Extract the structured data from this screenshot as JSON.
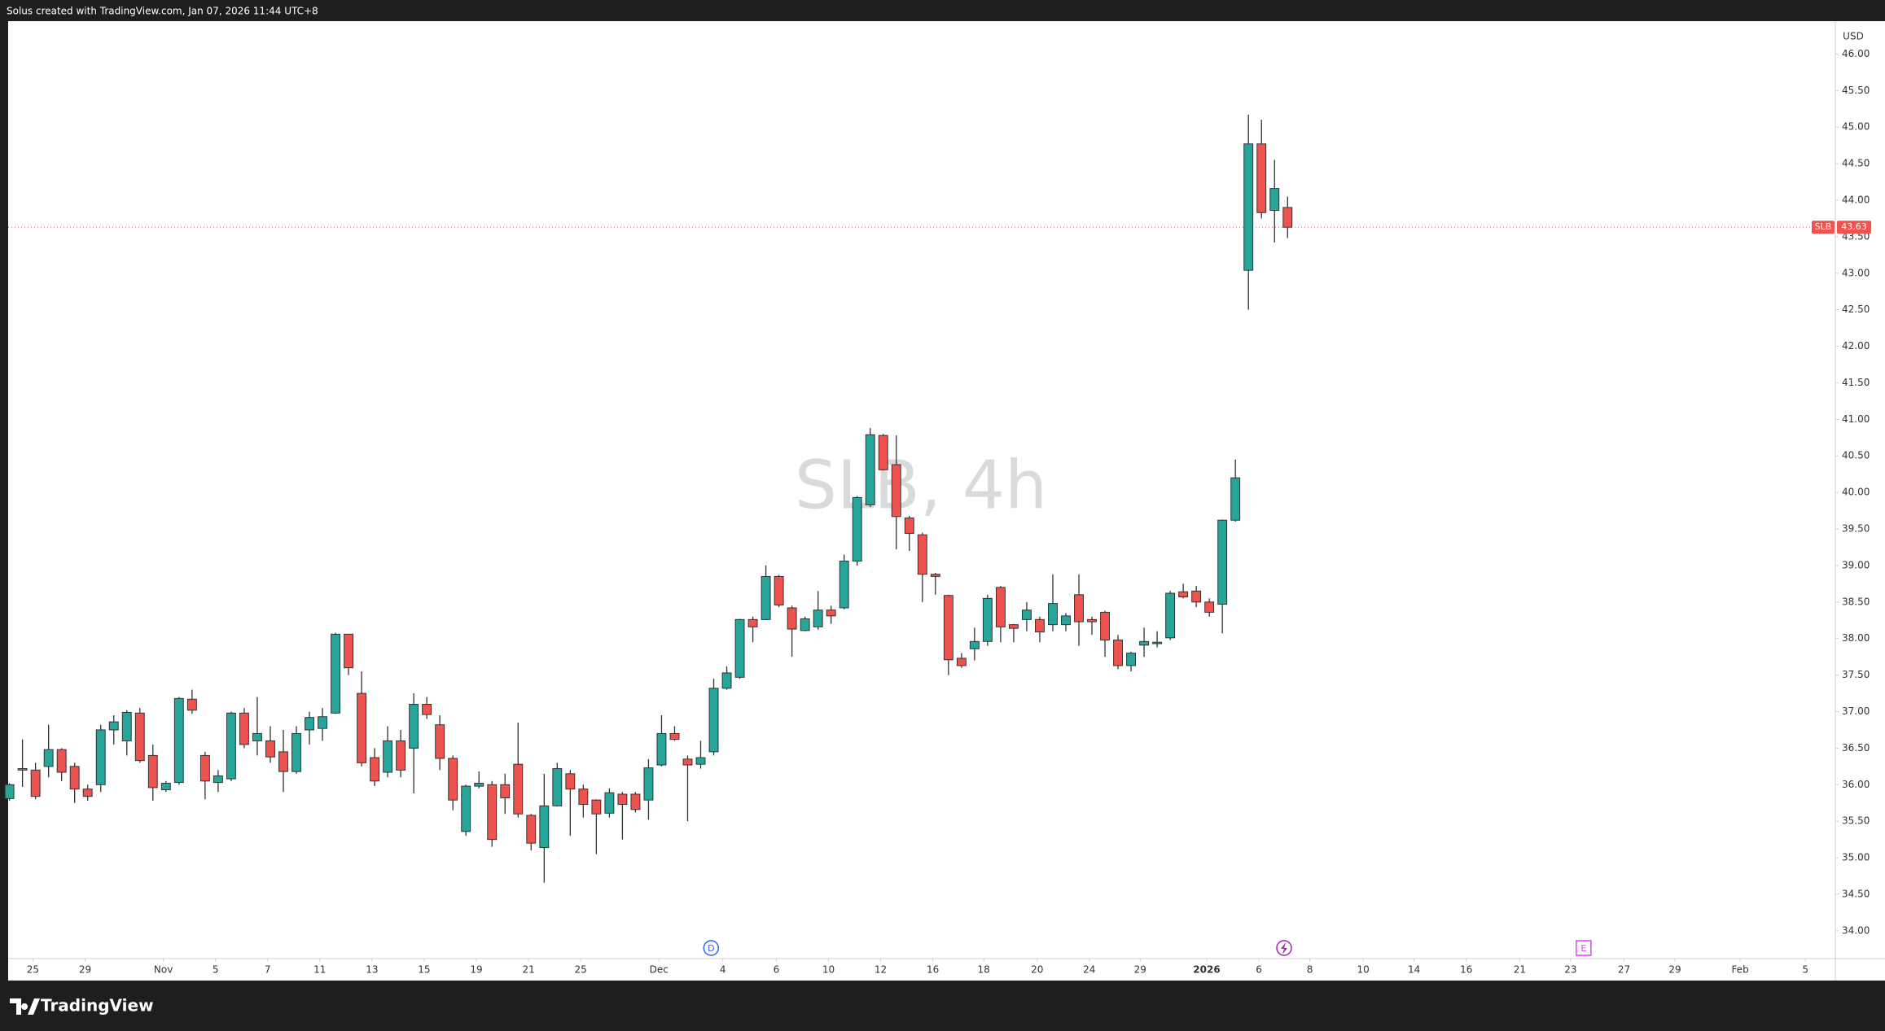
{
  "chart_data": {
    "type": "candlestick",
    "header": "Solus created with TradingView.com, Jan 07, 2026 11:44 UTC+8",
    "title": "SLB, 4h",
    "currency": "USD",
    "brand": "TradingView",
    "symbol": "SLB",
    "last_price": 43.63,
    "up_color": "#26a69a",
    "down_color": "#ef5350",
    "x": [
      0,
      1,
      2,
      3,
      4,
      5,
      6,
      7,
      8,
      9,
      10,
      11,
      12,
      13,
      14,
      15,
      16,
      17,
      18,
      19,
      20,
      21,
      22,
      23,
      24,
      25,
      26,
      27,
      28,
      29,
      30,
      31,
      32,
      33,
      34,
      35,
      36,
      37,
      38,
      39,
      40,
      41,
      42,
      43,
      44,
      45,
      46,
      47,
      48,
      49,
      50,
      51,
      52,
      53,
      54,
      55,
      56,
      57,
      58,
      59,
      60,
      61,
      62,
      63,
      64,
      65,
      66,
      67,
      68,
      69,
      70,
      71,
      72,
      73,
      74,
      75,
      76,
      77,
      78,
      79,
      80,
      81,
      82,
      83,
      84,
      85,
      86,
      87,
      88,
      89,
      90,
      91,
      92,
      93,
      94,
      95,
      96,
      97,
      98
    ],
    "open": [
      35.81,
      36.2,
      36.2,
      36.25,
      36.48,
      36.25,
      35.94,
      36.0,
      36.75,
      36.6,
      36.98,
      36.4,
      35.93,
      36.03,
      37.17,
      36.4,
      36.03,
      36.08,
      36.98,
      36.6,
      36.6,
      36.45,
      36.18,
      36.75,
      36.77,
      36.98,
      38.06,
      37.25,
      36.37,
      36.17,
      36.6,
      36.5,
      37.1,
      36.82,
      36.36,
      35.36,
      35.98,
      36.0,
      36.0,
      36.28,
      35.58,
      35.14,
      35.71,
      36.15,
      35.94,
      35.79,
      35.61,
      35.87,
      35.87,
      35.79,
      36.27,
      36.7,
      36.35,
      36.28,
      36.45,
      37.32,
      37.47,
      38.26,
      38.26,
      38.85,
      38.42,
      38.11,
      38.16,
      38.39,
      38.42,
      39.06,
      39.83,
      40.78,
      40.38,
      39.65,
      39.42,
      38.88,
      38.59,
      37.73,
      37.86,
      37.96,
      38.7,
      38.19,
      38.26,
      38.26,
      38.19,
      38.19,
      38.6,
      38.26,
      38.36,
      37.98,
      37.63,
      37.91,
      37.93,
      38.01,
      38.64,
      38.65,
      38.5,
      38.47,
      39.62,
      43.04,
      44.77,
      43.86,
      43.9
    ],
    "high": [
      36.02,
      36.62,
      36.3,
      36.82,
      36.5,
      36.3,
      36.0,
      36.82,
      36.95,
      37.02,
      37.05,
      36.55,
      36.05,
      37.2,
      37.3,
      36.45,
      36.2,
      37.0,
      37.05,
      37.2,
      36.8,
      36.75,
      36.8,
      37.0,
      37.05,
      38.08,
      38.06,
      37.55,
      36.5,
      36.8,
      36.75,
      37.25,
      37.2,
      36.95,
      36.4,
      36.0,
      36.18,
      36.05,
      36.15,
      36.85,
      35.6,
      36.15,
      36.3,
      36.2,
      36.0,
      35.8,
      35.95,
      35.9,
      35.9,
      36.35,
      36.95,
      36.8,
      36.4,
      36.6,
      37.45,
      37.62,
      38.27,
      38.3,
      39.0,
      38.87,
      38.45,
      38.3,
      38.65,
      38.45,
      39.15,
      39.95,
      40.88,
      40.8,
      40.78,
      39.68,
      39.45,
      38.9,
      38.6,
      37.8,
      38.15,
      38.6,
      38.72,
      38.2,
      38.5,
      38.3,
      38.88,
      38.35,
      38.88,
      38.3,
      38.38,
      38.05,
      37.82,
      38.15,
      38.1,
      38.65,
      38.75,
      38.72,
      38.55,
      39.63,
      40.45,
      45.17,
      45.1,
      44.55,
      44.05
    ],
    "low": [
      35.78,
      35.97,
      35.8,
      36.1,
      36.05,
      35.75,
      35.78,
      35.9,
      36.55,
      36.4,
      36.3,
      35.78,
      35.9,
      36.0,
      36.97,
      35.8,
      35.9,
      36.05,
      36.5,
      36.4,
      36.3,
      35.9,
      36.15,
      36.55,
      36.6,
      36.97,
      37.5,
      36.25,
      35.98,
      36.1,
      36.1,
      35.88,
      36.9,
      36.2,
      35.65,
      35.3,
      35.95,
      35.15,
      35.6,
      35.55,
      35.1,
      34.66,
      35.7,
      35.3,
      35.55,
      35.05,
      35.55,
      35.25,
      35.62,
      35.52,
      36.25,
      36.6,
      35.5,
      36.22,
      36.4,
      37.3,
      37.45,
      37.95,
      38.25,
      38.43,
      37.75,
      38.1,
      38.12,
      38.2,
      38.4,
      39.0,
      39.8,
      40.3,
      39.22,
      39.2,
      38.5,
      38.6,
      37.5,
      37.6,
      37.7,
      37.9,
      37.95,
      37.95,
      38.1,
      37.95,
      38.1,
      38.1,
      37.9,
      38.05,
      37.75,
      37.58,
      37.55,
      37.75,
      37.88,
      37.98,
      38.55,
      38.43,
      38.3,
      38.07,
      39.6,
      42.5,
      43.75,
      43.42,
      43.48
    ],
    "close": [
      36.0,
      36.22,
      35.84,
      36.48,
      36.17,
      35.94,
      35.84,
      36.75,
      36.86,
      36.99,
      36.33,
      35.96,
      36.02,
      37.18,
      37.02,
      36.05,
      36.12,
      36.98,
      36.55,
      36.7,
      36.38,
      36.18,
      36.7,
      36.92,
      36.93,
      38.06,
      37.6,
      36.3,
      36.05,
      36.6,
      36.2,
      37.1,
      36.96,
      36.36,
      35.79,
      35.98,
      36.02,
      35.25,
      35.82,
      35.6,
      35.2,
      35.71,
      36.22,
      35.94,
      35.73,
      35.6,
      35.89,
      35.73,
      35.66,
      36.23,
      36.7,
      36.62,
      36.27,
      36.37,
      37.32,
      37.53,
      38.26,
      38.16,
      38.85,
      38.46,
      38.13,
      38.27,
      38.39,
      38.31,
      39.06,
      39.93,
      40.79,
      40.31,
      39.67,
      39.44,
      38.88,
      38.85,
      37.71,
      37.63,
      37.96,
      38.55,
      38.16,
      38.14,
      38.39,
      38.09,
      38.48,
      38.31,
      38.23,
      38.23,
      37.98,
      37.63,
      37.8,
      37.96,
      37.95,
      38.62,
      38.57,
      38.5,
      38.36,
      39.62,
      40.2,
      44.77,
      43.83,
      44.16,
      43.63
    ],
    "events": [
      {
        "label": "D",
        "x": 53.8
      },
      {
        "label": "E",
        "x": 120.7
      }
    ],
    "xlim": [
      -0.1,
      140
    ],
    "ylim": [
      33.62,
      46.45
    ],
    "xticks": [
      {
        "value": 1.8,
        "label": "25"
      },
      {
        "value": 5.8,
        "label": "29"
      },
      {
        "value": 11.8,
        "label": "Nov"
      },
      {
        "value": 15.8,
        "label": "5"
      },
      {
        "value": 19.8,
        "label": "7"
      },
      {
        "value": 23.8,
        "label": "11"
      },
      {
        "value": 27.8,
        "label": "13"
      },
      {
        "value": 31.8,
        "label": "15"
      },
      {
        "value": 35.8,
        "label": "19"
      },
      {
        "value": 39.8,
        "label": "21"
      },
      {
        "value": 43.8,
        "label": "25"
      },
      {
        "value": 49.8,
        "label": "Dec"
      },
      {
        "value": 54.7,
        "label": "4"
      },
      {
        "value": 58.8,
        "label": "6"
      },
      {
        "value": 62.8,
        "label": "10"
      },
      {
        "value": 66.8,
        "label": "12"
      },
      {
        "value": 70.8,
        "label": "16"
      },
      {
        "value": 74.7,
        "label": "18"
      },
      {
        "value": 78.8,
        "label": "20"
      },
      {
        "value": 82.8,
        "label": "24"
      },
      {
        "value": 86.7,
        "label": "29"
      },
      {
        "value": 91.8,
        "label": "2026"
      },
      {
        "value": 95.8,
        "label": "6"
      },
      {
        "value": 99.7,
        "label": "8"
      },
      {
        "value": 103.8,
        "label": "10"
      },
      {
        "value": 107.7,
        "label": "14"
      },
      {
        "value": 111.7,
        "label": "16"
      },
      {
        "value": 115.8,
        "label": "21"
      },
      {
        "value": 119.7,
        "label": "23"
      },
      {
        "value": 123.8,
        "label": "27"
      },
      {
        "value": 127.7,
        "label": "29"
      },
      {
        "value": 132.7,
        "label": "Feb"
      },
      {
        "value": 137.7,
        "label": "5"
      }
    ],
    "yticks": [
      {
        "value": 34,
        "label": "34.00"
      },
      {
        "value": 34.5,
        "label": "34.50"
      },
      {
        "value": 35,
        "label": "35.00"
      },
      {
        "value": 35.5,
        "label": "35.50"
      },
      {
        "value": 36,
        "label": "36.00"
      },
      {
        "value": 36.5,
        "label": "36.50"
      },
      {
        "value": 37,
        "label": "37.00"
      },
      {
        "value": 37.5,
        "label": "37.50"
      },
      {
        "value": 38,
        "label": "38.00"
      },
      {
        "value": 38.5,
        "label": "38.50"
      },
      {
        "value": 39,
        "label": "39.00"
      },
      {
        "value": 39.5,
        "label": "39.50"
      },
      {
        "value": 40,
        "label": "40.00"
      },
      {
        "value": 40.5,
        "label": "40.50"
      },
      {
        "value": 41,
        "label": "41.00"
      },
      {
        "value": 41.5,
        "label": "41.50"
      },
      {
        "value": 42,
        "label": "42.00"
      },
      {
        "value": 42.5,
        "label": "42.50"
      },
      {
        "value": 43,
        "label": "43.00"
      },
      {
        "value": 43.5,
        "label": "43.50"
      },
      {
        "value": 44,
        "label": "44.00"
      },
      {
        "value": 44.5,
        "label": "44.50"
      },
      {
        "value": 45,
        "label": "45.00"
      },
      {
        "value": 45.5,
        "label": "45.50"
      },
      {
        "value": 46,
        "label": "46.00"
      }
    ]
  }
}
